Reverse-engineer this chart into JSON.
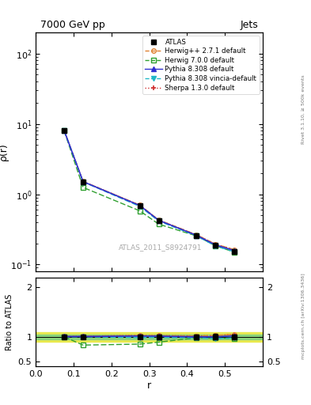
{
  "title": "7000 GeV pp",
  "title_right": "Jets",
  "ylabel_main": "ρ(r)",
  "ylabel_ratio": "Ratio to ATLAS",
  "xlabel": "r",
  "watermark": "ATLAS_2011_S8924791",
  "right_label_top": "Rivet 3.1.10, ≥ 500k events",
  "right_label_bot": "mcplots.cern.ch [arXiv:1306.3436]",
  "x": [
    0.075,
    0.125,
    0.275,
    0.325,
    0.425,
    0.475,
    0.525
  ],
  "atlas_y": [
    8.0,
    1.5,
    0.68,
    0.42,
    0.26,
    0.19,
    0.155
  ],
  "atlas_yerr": [
    0.25,
    0.05,
    0.025,
    0.018,
    0.012,
    0.01,
    0.008
  ],
  "herwig271_y": [
    8.1,
    1.52,
    0.7,
    0.43,
    0.265,
    0.195,
    0.163
  ],
  "herwig700_y": [
    8.0,
    1.25,
    0.58,
    0.375,
    0.255,
    0.185,
    0.15
  ],
  "pythia8308_y": [
    8.05,
    1.51,
    0.69,
    0.425,
    0.26,
    0.19,
    0.158
  ],
  "pythia8308v_y": [
    8.0,
    1.5,
    0.67,
    0.415,
    0.255,
    0.183,
    0.152
  ],
  "sherpa130_y": [
    8.05,
    1.52,
    0.7,
    0.43,
    0.265,
    0.195,
    0.163
  ],
  "herwig271_ratio": [
    1.01,
    1.013,
    1.03,
    1.024,
    1.019,
    1.026,
    1.051
  ],
  "herwig700_ratio": [
    1.0,
    0.833,
    0.853,
    0.893,
    0.981,
    0.974,
    0.968
  ],
  "pythia8308_ratio": [
    1.006,
    1.007,
    1.015,
    1.012,
    1.0,
    1.0,
    1.019
  ],
  "pythia8308v_ratio": [
    1.0,
    1.0,
    0.985,
    0.988,
    0.981,
    0.963,
    0.981
  ],
  "sherpa130_ratio": [
    1.006,
    1.013,
    1.03,
    1.024,
    1.019,
    1.026,
    1.051
  ],
  "atlas_ratio_err": [
    0.031,
    0.033,
    0.037,
    0.043,
    0.046,
    0.053,
    0.052
  ],
  "atlas_band_green": "#80d080",
  "atlas_band_yellow": "#e8e840",
  "colors": {
    "atlas": "#000000",
    "herwig271": "#e08030",
    "herwig700": "#30a030",
    "pythia8308": "#3030d0",
    "pythia8308v": "#20b8c8",
    "sherpa130": "#d03030"
  },
  "xlim": [
    0.0,
    0.6
  ],
  "ylim_main": [
    0.08,
    200.0
  ],
  "ylim_ratio": [
    0.4,
    2.2
  ],
  "ratio_yticks": [
    0.5,
    1.0,
    2.0
  ]
}
